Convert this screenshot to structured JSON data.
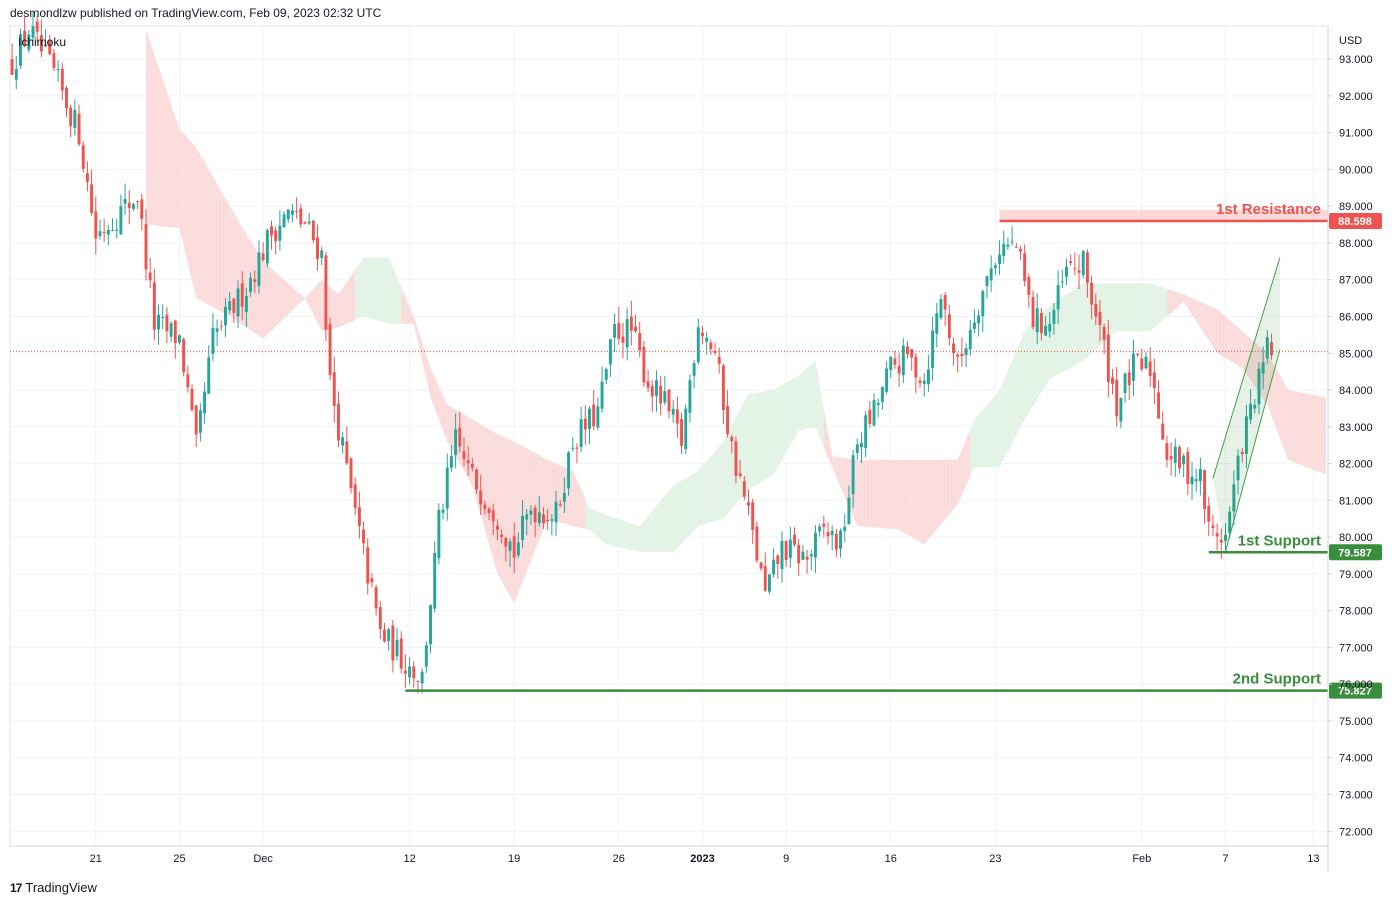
{
  "header": {
    "published": "desmondlzw published on TradingView.com, Feb 09, 2023 02:32 UTC"
  },
  "brand": {
    "logo_icon": "tradingview-logo-icon",
    "name": "TradingView"
  },
  "indicator": {
    "name": "Ichimoku"
  },
  "colors": {
    "up": "#26a69a",
    "down": "#ef5350",
    "resistance": "#ef5350",
    "support": "#388e3c",
    "cloud_bear": "#fbdcdc",
    "cloud_bull": "#e3f3e6",
    "grid": "#f0f3fa",
    "axis_text": "#131722"
  },
  "chart_data": {
    "type": "candlestick",
    "currency_label": "USD",
    "ylim": [
      71.6,
      93.9
    ],
    "y_ticks": [
      "93.000",
      "92.000",
      "91.000",
      "90.000",
      "89.000",
      "88.000",
      "87.000",
      "86.000",
      "85.000",
      "84.000",
      "83.000",
      "82.000",
      "81.000",
      "80.000",
      "79.000",
      "78.000",
      "77.000",
      "76.000",
      "75.000",
      "74.000",
      "73.000",
      "72.000"
    ],
    "x_ticks": [
      {
        "label": "21",
        "i": 20
      },
      {
        "label": "25",
        "i": 40
      },
      {
        "label": "Dec",
        "i": 60
      },
      {
        "label": "12",
        "i": 95
      },
      {
        "label": "19",
        "i": 120
      },
      {
        "label": "26",
        "i": 145
      },
      {
        "label": "2023",
        "i": 165
      },
      {
        "label": "9",
        "i": 185
      },
      {
        "label": "16",
        "i": 210
      },
      {
        "label": "23",
        "i": 235
      },
      {
        "label": "Feb",
        "i": 270
      },
      {
        "label": "7",
        "i": 290
      },
      {
        "label": "13",
        "i": 311
      }
    ],
    "x_count": 315,
    "price_anchors": [
      [
        0,
        92.9
      ],
      [
        4,
        93.8
      ],
      [
        10,
        92.6
      ],
      [
        16,
        91.0
      ],
      [
        20,
        88.2
      ],
      [
        30,
        89.3
      ],
      [
        34,
        85.8
      ],
      [
        40,
        85.4
      ],
      [
        44,
        82.4
      ],
      [
        48,
        85.4
      ],
      [
        56,
        86.8
      ],
      [
        62,
        88.3
      ],
      [
        66,
        88.8
      ],
      [
        70,
        88.5
      ],
      [
        74,
        87.7
      ],
      [
        76,
        84.2
      ],
      [
        82,
        80.6
      ],
      [
        88,
        77.4
      ],
      [
        94,
        76.6
      ],
      [
        98,
        76.2
      ],
      [
        102,
        80.4
      ],
      [
        106,
        82.6
      ],
      [
        110,
        81.6
      ],
      [
        116,
        80.6
      ],
      [
        120,
        79.6
      ],
      [
        124,
        80.8
      ],
      [
        130,
        80.6
      ],
      [
        134,
        82.6
      ],
      [
        140,
        83.4
      ],
      [
        144,
        85.6
      ],
      [
        148,
        85.6
      ],
      [
        152,
        84.2
      ],
      [
        156,
        83.6
      ],
      [
        160,
        82.6
      ],
      [
        164,
        85.9
      ],
      [
        168,
        85.0
      ],
      [
        172,
        82.4
      ],
      [
        176,
        80.6
      ],
      [
        180,
        78.4
      ],
      [
        184,
        79.7
      ],
      [
        190,
        79.4
      ],
      [
        194,
        80.2
      ],
      [
        198,
        79.8
      ],
      [
        202,
        82.6
      ],
      [
        206,
        83.4
      ],
      [
        210,
        84.6
      ],
      [
        214,
        84.9
      ],
      [
        218,
        84.3
      ],
      [
        222,
        86.6
      ],
      [
        226,
        84.6
      ],
      [
        230,
        86.1
      ],
      [
        236,
        87.9
      ],
      [
        240,
        87.9
      ],
      [
        244,
        85.9
      ],
      [
        248,
        85.8
      ],
      [
        252,
        87.2
      ],
      [
        256,
        87.4
      ],
      [
        260,
        85.6
      ],
      [
        264,
        83.6
      ],
      [
        268,
        84.6
      ],
      [
        272,
        84.6
      ],
      [
        276,
        82.3
      ],
      [
        280,
        81.9
      ],
      [
        284,
        81.6
      ],
      [
        286,
        80.2
      ],
      [
        290,
        80.0
      ],
      [
        294,
        82.6
      ],
      [
        298,
        84.2
      ],
      [
        300,
        85.1
      ],
      [
        301,
        85.1
      ]
    ],
    "cloud_anchors": [
      [
        32,
        93.8,
        88.5,
        0
      ],
      [
        40,
        91.1,
        88.4,
        0
      ],
      [
        44,
        90.6,
        86.5,
        0
      ],
      [
        52,
        89.0,
        86.0,
        0
      ],
      [
        60,
        87.5,
        85.4,
        0
      ],
      [
        70,
        86.5,
        86.5,
        0
      ],
      [
        74,
        87.0,
        85.6,
        0
      ],
      [
        78,
        86.6,
        85.7,
        0
      ],
      [
        84,
        87.6,
        86.0,
        1
      ],
      [
        90,
        87.6,
        85.8,
        1
      ],
      [
        96,
        86.0,
        85.8,
        0
      ],
      [
        100,
        84.6,
        83.8,
        0
      ],
      [
        104,
        83.6,
        82.6,
        0
      ],
      [
        110,
        83.2,
        81.4,
        0
      ],
      [
        116,
        82.8,
        79.0,
        0
      ],
      [
        120,
        82.6,
        78.2,
        0
      ],
      [
        128,
        82.1,
        80.5,
        0
      ],
      [
        134,
        81.8,
        80.3,
        0
      ],
      [
        138,
        80.8,
        80.2,
        1
      ],
      [
        142,
        80.6,
        79.8,
        1
      ],
      [
        150,
        80.3,
        79.6,
        1
      ],
      [
        158,
        81.4,
        79.6,
        1
      ],
      [
        164,
        81.8,
        80.3,
        1
      ],
      [
        170,
        82.6,
        80.5,
        1
      ],
      [
        176,
        83.9,
        81.3,
        1
      ],
      [
        182,
        84.0,
        81.7,
        1
      ],
      [
        188,
        84.4,
        82.9,
        1
      ],
      [
        192,
        84.8,
        83.0,
        1
      ],
      [
        196,
        82.2,
        81.9,
        0
      ],
      [
        202,
        82.1,
        80.3,
        0
      ],
      [
        212,
        82.1,
        80.2,
        0
      ],
      [
        218,
        82.1,
        79.8,
        0
      ],
      [
        226,
        82.1,
        80.9,
        0
      ],
      [
        230,
        83.2,
        81.9,
        1
      ],
      [
        236,
        84.0,
        81.9,
        1
      ],
      [
        242,
        85.6,
        83.2,
        1
      ],
      [
        248,
        86.3,
        84.3,
        1
      ],
      [
        256,
        86.9,
        84.8,
        1
      ],
      [
        264,
        86.9,
        85.6,
        1
      ],
      [
        272,
        86.9,
        85.6,
        1
      ],
      [
        280,
        86.6,
        86.4,
        0
      ],
      [
        288,
        86.2,
        85.0,
        0
      ],
      [
        294,
        85.6,
        84.6,
        0
      ],
      [
        300,
        85.0,
        83.6,
        0
      ],
      [
        305,
        84.0,
        82.1,
        0
      ],
      [
        314,
        83.8,
        81.7,
        0
      ]
    ],
    "last_price": 85.05,
    "levels": [
      {
        "name": "1st Resistance",
        "price": 88.598,
        "price_label": "88.598",
        "kind": "resistance",
        "from_i": 236,
        "band_top": 88.9
      },
      {
        "name": "1st Support",
        "price": 79.587,
        "price_label": "79.587",
        "kind": "support",
        "from_i": 286
      },
      {
        "name": "2nd Support",
        "price": 75.827,
        "price_label": "75.827",
        "kind": "support",
        "from_i": 94
      }
    ],
    "channel": {
      "upper": [
        [
          287,
          81.6
        ],
        [
          303,
          87.6
        ]
      ],
      "lower": [
        [
          290,
          79.6
        ],
        [
          303,
          85.1
        ]
      ]
    }
  }
}
